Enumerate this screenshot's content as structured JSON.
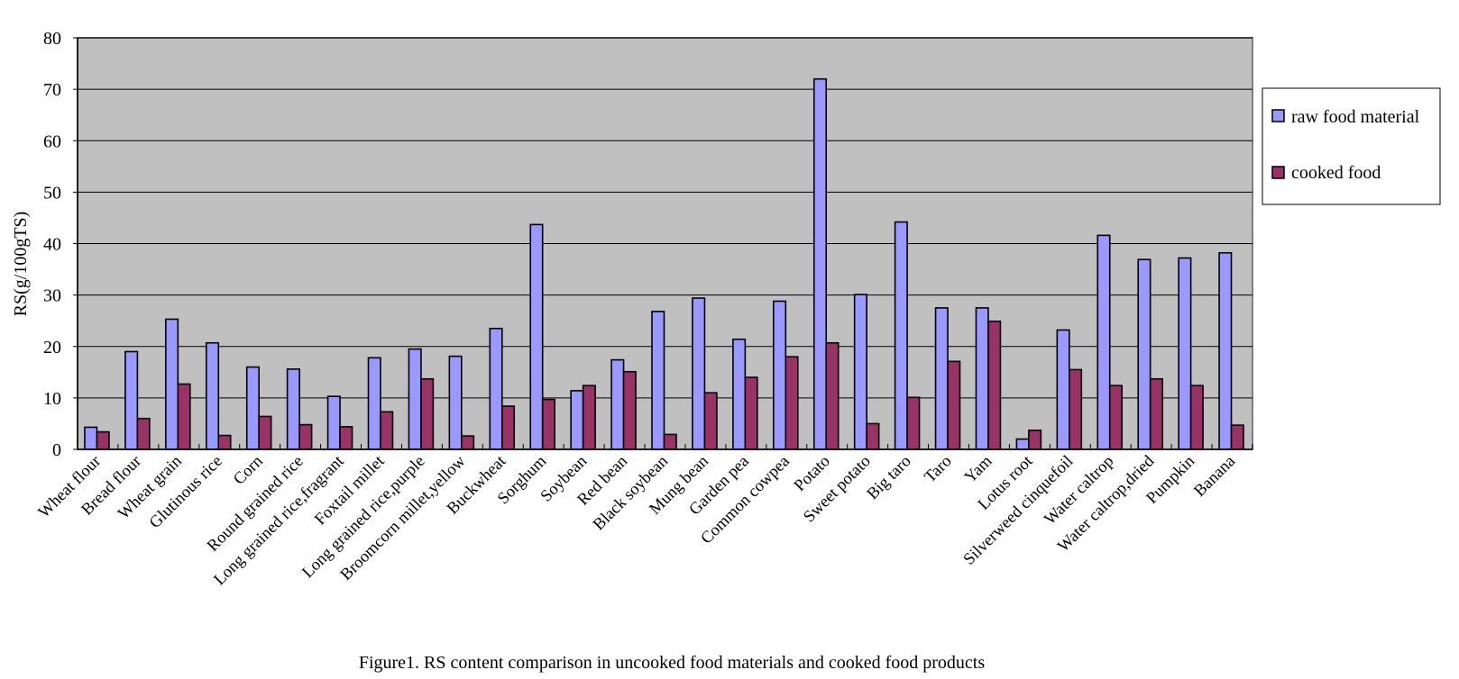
{
  "chart_data": {
    "type": "bar",
    "title": "",
    "caption": "Figure1. RS content comparison in uncooked food materials and cooked food products",
    "xlabel": "",
    "ylabel": "RS(g/100gTS)",
    "ylim": [
      0,
      80
    ],
    "yticks": [
      0,
      10,
      20,
      30,
      40,
      50,
      60,
      70,
      80
    ],
    "grid": true,
    "legend_position": "right",
    "categories": [
      "Wheat flour",
      "Bread flour",
      "Wheat grain",
      "Glutinous rice",
      "Corn",
      "Round grained rice",
      "Long grained rice,fragrant",
      "Foxtail millet",
      "Long grained rice,purple",
      "Broomcorn millet,yellow",
      "Buckwheat",
      "Sorghum",
      "Soybean",
      "Red bean",
      "Black soybean",
      "Mung bean",
      "Garden pea",
      "Common cowpea",
      "Potato",
      "Sweet potato",
      "Big taro",
      "Taro",
      "Yam",
      "Lotus root",
      "Silverweed cinquefoil",
      "Water caltrop",
      "Water caltrop,dried",
      "Pumpkin",
      "Banana"
    ],
    "series": [
      {
        "name": "raw food material",
        "color": "#9999FF",
        "values": [
          4.3,
          19.0,
          25.3,
          20.7,
          16.0,
          15.6,
          10.3,
          17.8,
          19.5,
          18.1,
          23.5,
          43.7,
          11.4,
          17.4,
          26.8,
          29.4,
          21.4,
          28.8,
          72.0,
          30.1,
          44.2,
          27.5,
          27.5,
          2.0,
          23.2,
          41.6,
          36.9,
          37.2,
          38.2
        ]
      },
      {
        "name": "cooked food",
        "color": "#993366",
        "values": [
          3.4,
          6.0,
          12.7,
          2.7,
          6.4,
          4.8,
          4.4,
          7.3,
          13.7,
          2.6,
          8.4,
          9.7,
          12.4,
          15.1,
          2.9,
          11.0,
          14.0,
          18.0,
          20.7,
          5.0,
          10.1,
          17.1,
          24.9,
          3.7,
          15.5,
          12.4,
          13.7,
          12.4,
          4.7
        ]
      }
    ],
    "plot_background": "#C0C0C0"
  }
}
